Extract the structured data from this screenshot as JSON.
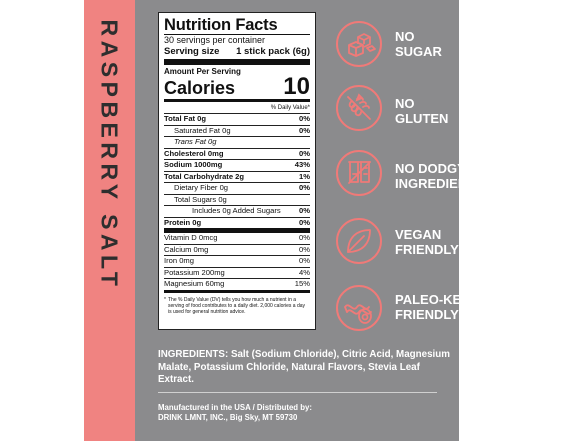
{
  "flavor": "RASPBERRY SALT",
  "nutrition": {
    "title": "Nutrition Facts",
    "servings": "30 servings per container",
    "serving_size_label": "Serving size",
    "serving_size_value": "1 stick pack (6g)",
    "amount_per_serving": "Amount Per Serving",
    "calories_label": "Calories",
    "calories_value": "10",
    "dv_header": "% Daily Value*",
    "rows": [
      {
        "label": "Total Fat 0g",
        "dv": "0%"
      },
      {
        "label": "Saturated Fat 0g",
        "dv": "0%"
      },
      {
        "label": "Trans Fat 0g",
        "dv": ""
      },
      {
        "label": "Cholesterol 0mg",
        "dv": "0%"
      },
      {
        "label": "Sodium 1000mg",
        "dv": "43%"
      },
      {
        "label": "Total Carbohydrate 2g",
        "dv": "1%"
      },
      {
        "label": "Dietary Fiber 0g",
        "dv": "0%"
      },
      {
        "label": "Total Sugars 0g",
        "dv": ""
      },
      {
        "label": "Includes 0g Added Sugars",
        "dv": "0%"
      },
      {
        "label": "Protein 0g",
        "dv": "0%"
      },
      {
        "label": "Vitamin D 0mcg",
        "dv": "0%"
      },
      {
        "label": "Calcium 0mg",
        "dv": "0%"
      },
      {
        "label": "Iron 0mg",
        "dv": "0%"
      },
      {
        "label": "Potassium 200mg",
        "dv": "4%"
      },
      {
        "label": "Magnesium 60mg",
        "dv": "15%"
      }
    ],
    "footnote_star": "*",
    "footnote": "The % Daily Value (DV) tells you how much a nutrient in a serving of food contributes to a daily diet. 2,000 calories a day is used for general nutrition advice."
  },
  "ingredients": {
    "label": "INGREDIENTS:",
    "text": "Salt (Sodium Chloride), Citric Acid, Magnesium Malate, Potassium Chloride, Natural Flavors, Stevia Leaf Extract."
  },
  "manufacturer": {
    "line1": "Manufactured in the USA / Distributed by:",
    "line2": "DRINK LMNT, INC., Big Sky, MT 59730"
  },
  "badges": [
    {
      "line1": "NO",
      "line2": "SUGAR",
      "icon": "sugar-cubes-icon"
    },
    {
      "line1": "NO",
      "line2": "GLUTEN",
      "icon": "wheat-icon"
    },
    {
      "line1": "NO DODGY",
      "line2": "INGREDIENTS",
      "icon": "test-tubes-icon"
    },
    {
      "line1": "VEGAN",
      "line2": "FRIENDLY",
      "icon": "leaf-icon"
    },
    {
      "line1": "PALEO-KETO",
      "line2": "FRIENDLY",
      "icon": "bacon-avocado-icon"
    }
  ],
  "colors": {
    "accent": "#f08381",
    "panel_gray": "#8b8b8d",
    "icon_pink": "#f07a78"
  }
}
